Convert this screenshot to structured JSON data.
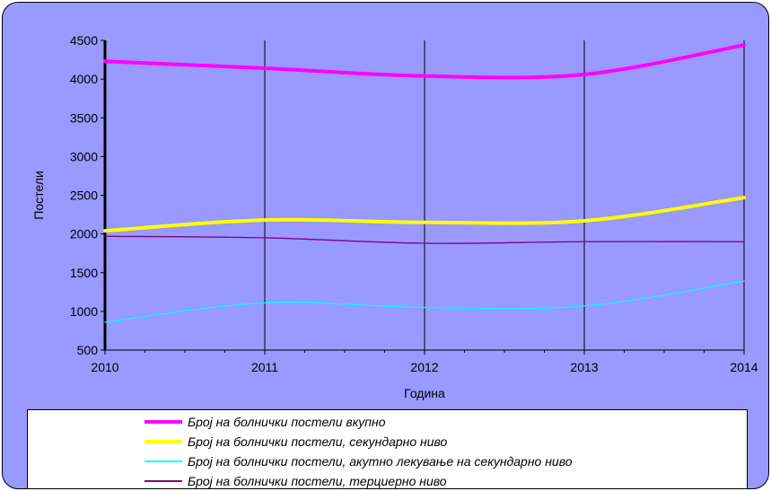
{
  "chart_data": {
    "type": "line",
    "title": "",
    "xlabel": "Година",
    "ylabel": "Постели",
    "x": [
      2010,
      2011,
      2012,
      2013,
      2014
    ],
    "xticks": [
      "2010",
      "2011",
      "2012",
      "2013",
      "2014"
    ],
    "yticks": [
      "500",
      "1000",
      "1500",
      "2000",
      "2500",
      "3000",
      "3500",
      "4000",
      "4500"
    ],
    "ylim": [
      500,
      4500
    ],
    "grid": "vertical",
    "legend_position": "bottom",
    "series": [
      {
        "name": "Број на болнички постели вкупно",
        "color": "#ff00ff",
        "values": [
          4230,
          4140,
          4040,
          4060,
          4440
        ]
      },
      {
        "name": "Број на болнички постели, секундарно ниво",
        "color": "#ffff00",
        "values": [
          2040,
          2180,
          2150,
          2170,
          2470
        ]
      },
      {
        "name": "Број на болнички постели, акутно лекување на секундарно ниво",
        "color": "#00ffff",
        "values": [
          860,
          1110,
          1050,
          1070,
          1390
        ]
      },
      {
        "name": "Број на болнички постели, терциерно ниво",
        "color": "#800080",
        "values": [
          1970,
          1950,
          1880,
          1900,
          1900
        ]
      }
    ]
  }
}
